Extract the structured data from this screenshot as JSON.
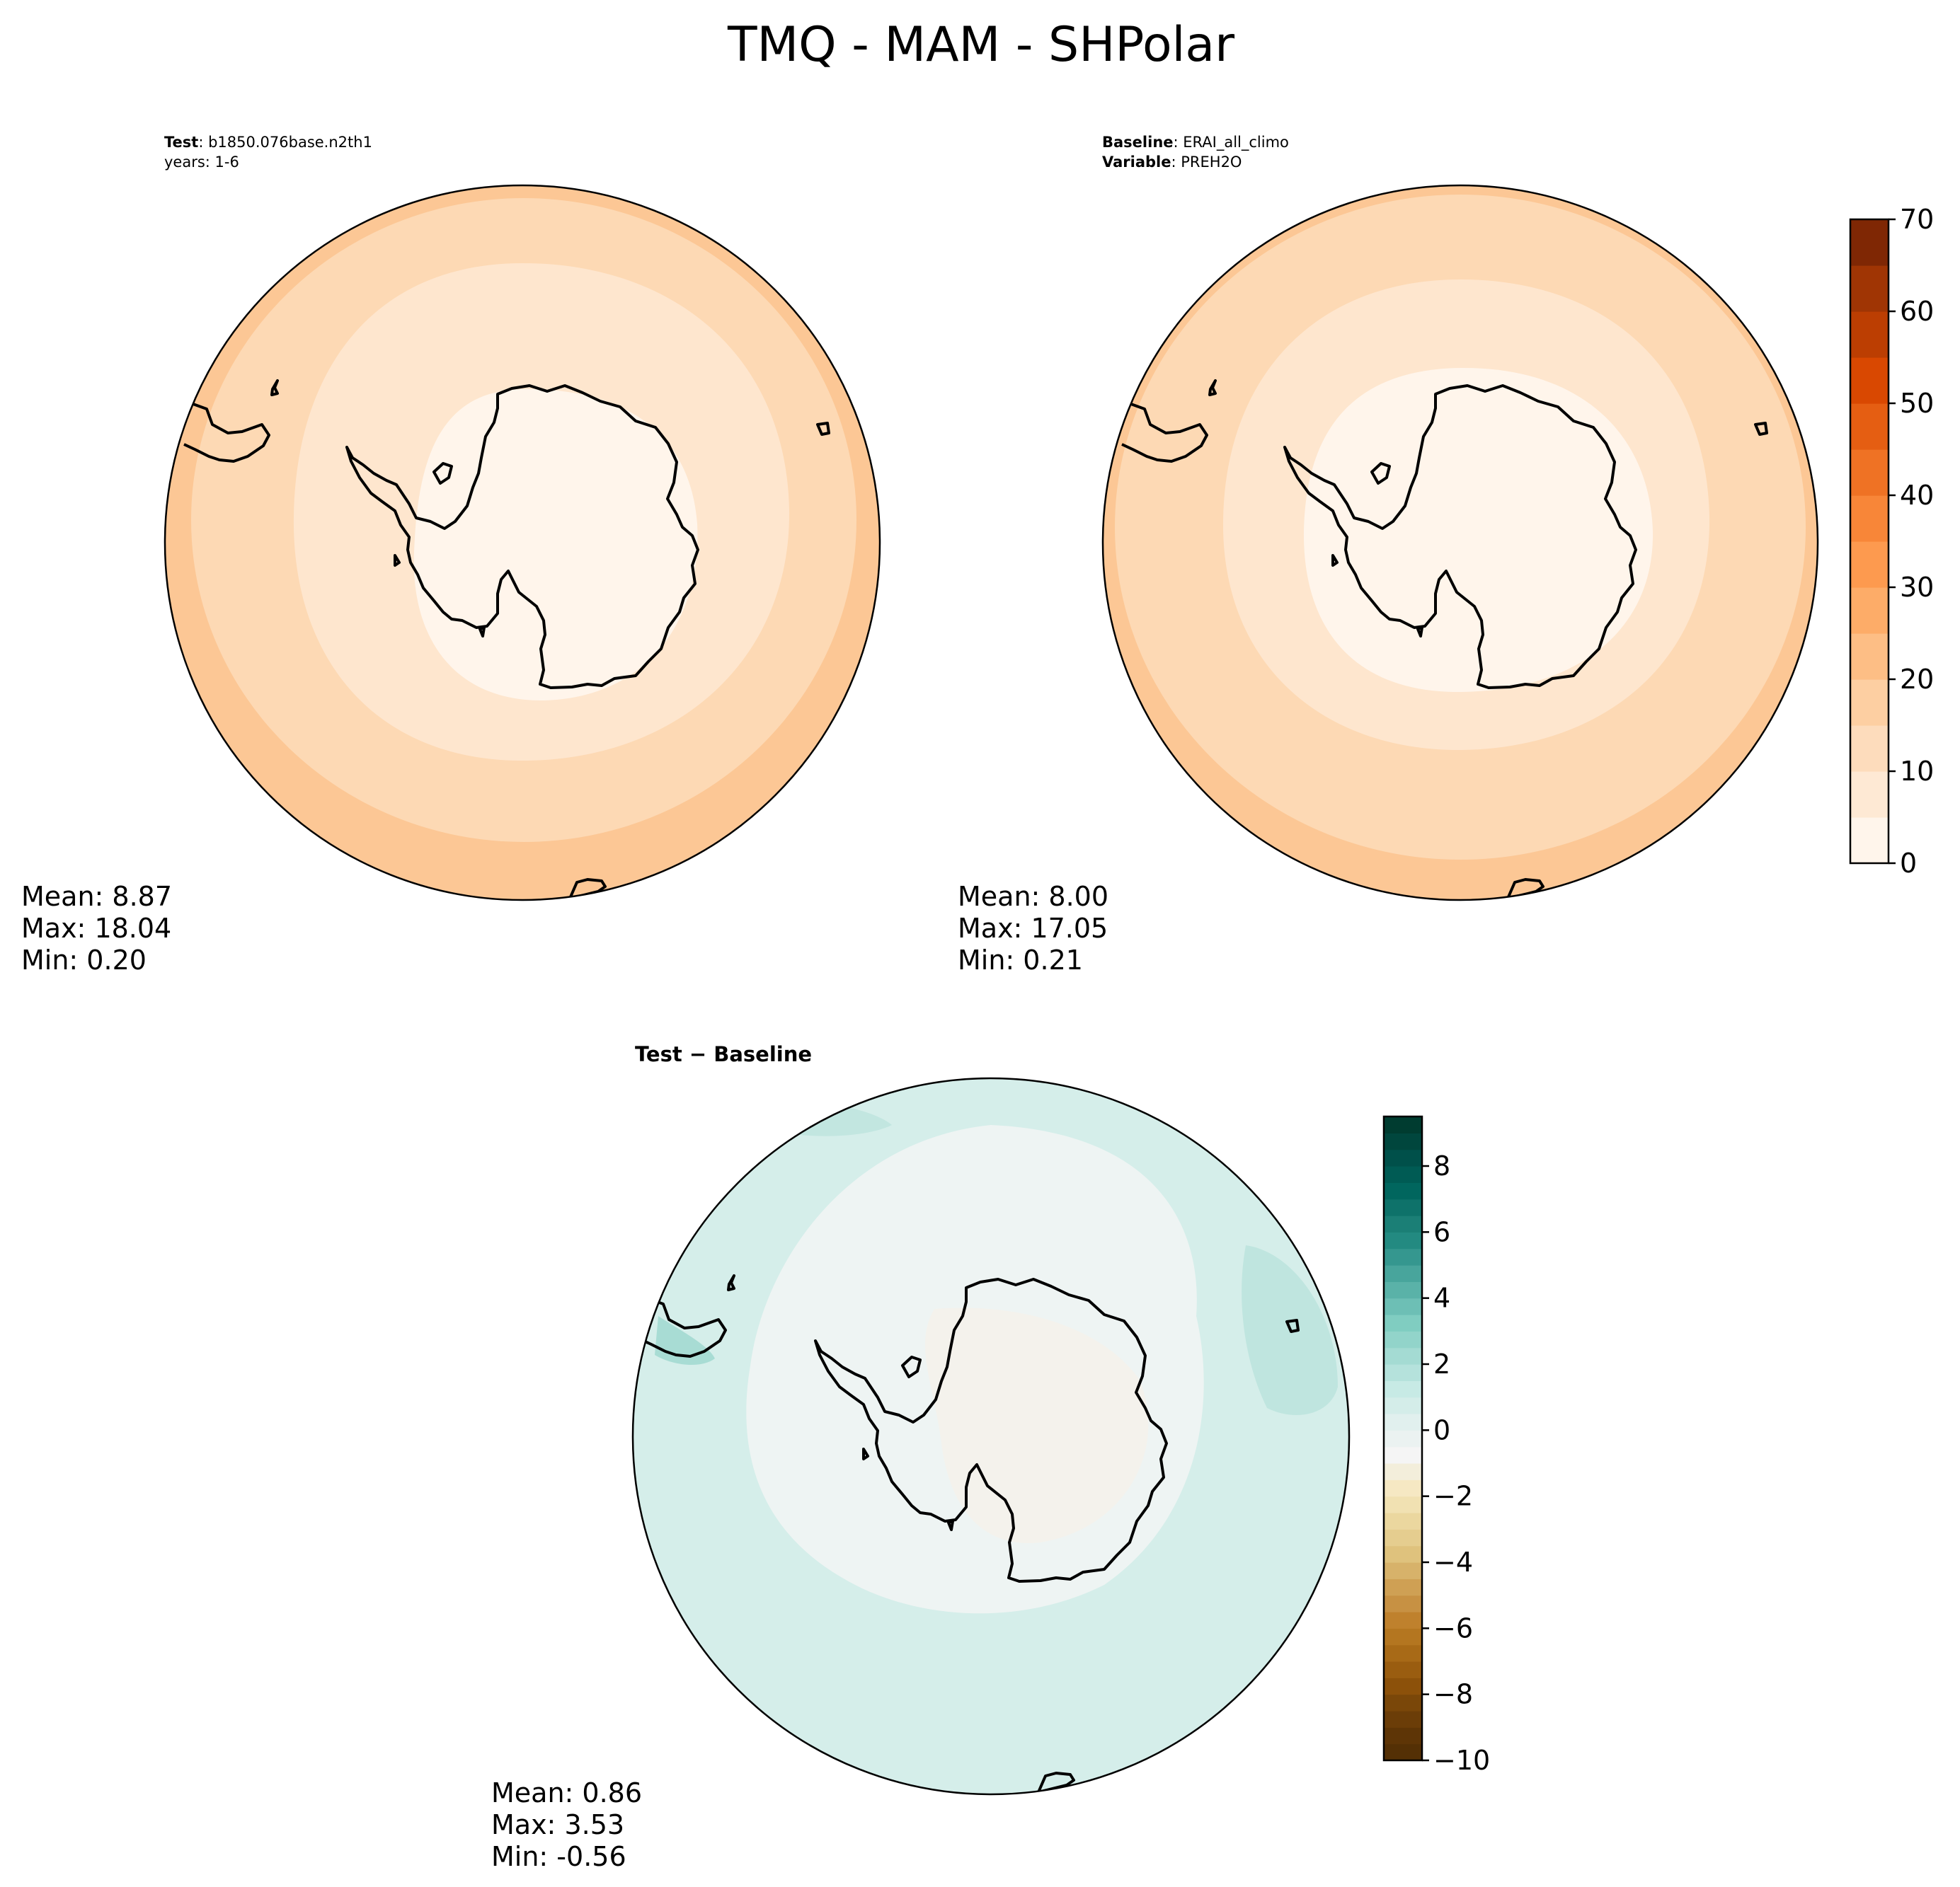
{
  "title": "TMQ - MAM - SHPolar",
  "panels": {
    "test": {
      "header_line1_key": "Test",
      "header_line1_sep": ": ",
      "header_line1_value": "b1850.076base.n2th1",
      "header_line2": "years: 1-6",
      "stats": {
        "mean": "Mean:  8.87",
        "max": "Max: 18.04",
        "min": "Min:  0.20"
      }
    },
    "baseline": {
      "header_line1_key": "Baseline",
      "header_line1_sep": ": ",
      "header_line1_value": "ERAI_all_climo",
      "header_line2_key": "Variable",
      "header_line2_sep": ": ",
      "header_line2_value": "PREH2O",
      "stats": {
        "mean": "Mean:  8.00",
        "max": "Max: 17.05",
        "min": "Min:  0.21"
      }
    },
    "diff": {
      "title": "Test − Baseline",
      "stats": {
        "mean": "Mean:  0.86",
        "max": "Max:  3.53",
        "min": "Min: -0.56"
      }
    }
  },
  "colors": {
    "field_levels": [
      "#fff5eb",
      "#fee6ce",
      "#fdd9b4",
      "#fdc896",
      "#fdb273",
      "#fd9b55",
      "#f6843b",
      "#ec6a20",
      "#d94801",
      "#b93d02",
      "#9a3403",
      "#7f2704"
    ],
    "diff_levels": [
      "#543005",
      "#6b3d08",
      "#8c510a",
      "#a86a17",
      "#bf812d",
      "#cfa054",
      "#dfc27d",
      "#ebd79f",
      "#f6e8c3",
      "#f3eedb",
      "#f5f5f5",
      "#e1f0ee",
      "#c7eae5",
      "#a4dbd3",
      "#80cdc1",
      "#5ab2a8",
      "#35978f",
      "#1b7f76",
      "#01665e",
      "#00504a",
      "#003c30"
    ],
    "coast": "#000000"
  },
  "chart_data": [
    {
      "type": "heatmap",
      "name": "test",
      "projection": "south-polar-stereographic",
      "colorbar": null,
      "field_levels_shown": [
        5,
        10,
        15,
        20
      ],
      "stats": {
        "mean": 8.87,
        "max": 18.04,
        "min": 0.2
      }
    },
    {
      "type": "heatmap",
      "name": "baseline",
      "projection": "south-polar-stereographic",
      "colorbar": {
        "min": 0,
        "max": 70,
        "ticks": [
          0,
          10,
          20,
          30,
          40,
          50,
          60,
          70
        ],
        "tick_labels": [
          "0",
          "10",
          "20",
          "30",
          "40",
          "50",
          "60",
          "70"
        ],
        "levels": [
          0,
          5,
          10,
          15,
          20,
          25,
          30,
          35,
          40,
          45,
          50,
          55,
          60,
          65,
          70
        ]
      },
      "stats": {
        "mean": 8.0,
        "max": 17.05,
        "min": 0.21
      }
    },
    {
      "type": "heatmap",
      "name": "diff",
      "projection": "south-polar-stereographic",
      "colorbar": {
        "min": -10,
        "max": 9.5,
        "ticks": [
          -10,
          -8,
          -6,
          -4,
          -2,
          0,
          2,
          4,
          6,
          8
        ],
        "tick_labels": [
          "−10",
          "−8",
          "−6",
          "−4",
          "−2",
          "0",
          "2",
          "4",
          "6",
          "8"
        ]
      },
      "stats": {
        "mean": 0.86,
        "max": 3.53,
        "min": -0.56
      }
    }
  ]
}
